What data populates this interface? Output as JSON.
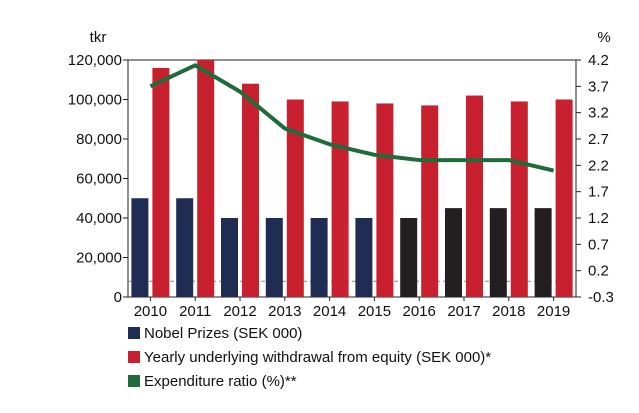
{
  "chart_data": {
    "type": "bar",
    "categories": [
      "2010",
      "2011",
      "2012",
      "2013",
      "2014",
      "2015",
      "2016",
      "2017",
      "2018",
      "2019"
    ],
    "left_axis": {
      "unit_label": "tkr",
      "range": [
        0,
        120000
      ],
      "ticks": [
        "0",
        "20,000",
        "40,000",
        "60,000",
        "80,000",
        "100,000",
        "120,000"
      ],
      "tick_values": [
        0,
        20000,
        40000,
        60000,
        80000,
        100000,
        120000
      ]
    },
    "right_axis": {
      "unit_label": "%",
      "range": [
        -0.3,
        4.2
      ],
      "ticks": [
        "-0.3",
        "0.2",
        "0.7",
        "1.2",
        "1.7",
        "2.2",
        "2.7",
        "3.2",
        "3.7",
        "4.2"
      ],
      "tick_values": [
        -0.3,
        0.2,
        0.7,
        1.2,
        1.7,
        2.2,
        2.7,
        3.2,
        3.7,
        4.2
      ]
    },
    "series": [
      {
        "name": "Nobel Prizes (SEK 000)",
        "type": "bar",
        "axis": "left",
        "values": [
          50000,
          50000,
          40000,
          40000,
          40000,
          40000,
          40000,
          45000,
          45000,
          45000
        ],
        "colors": [
          "#1f2d54",
          "#1f2d54",
          "#1f2d54",
          "#1f2d54",
          "#1f2d54",
          "#1f2d54",
          "#231f20",
          "#231f20",
          "#231f20",
          "#231f20"
        ]
      },
      {
        "name": "Yearly underlying withdrawal from equity (SEK 000)*",
        "type": "bar",
        "axis": "left",
        "values": [
          116000,
          120000,
          108000,
          100000,
          99000,
          98000,
          97000,
          102000,
          99000,
          100000
        ],
        "color": "#c8202f"
      },
      {
        "name": "Expenditure ratio (%)**",
        "type": "line",
        "axis": "right",
        "values": [
          3.7,
          4.1,
          3.6,
          2.9,
          2.6,
          2.4,
          2.3,
          2.3,
          2.3,
          2.1
        ],
        "color": "#1f6b3a"
      }
    ],
    "grid": false,
    "dashed_reference_line": {
      "axis": "right",
      "value": 0
    },
    "legend_placement": "bottom-left"
  }
}
